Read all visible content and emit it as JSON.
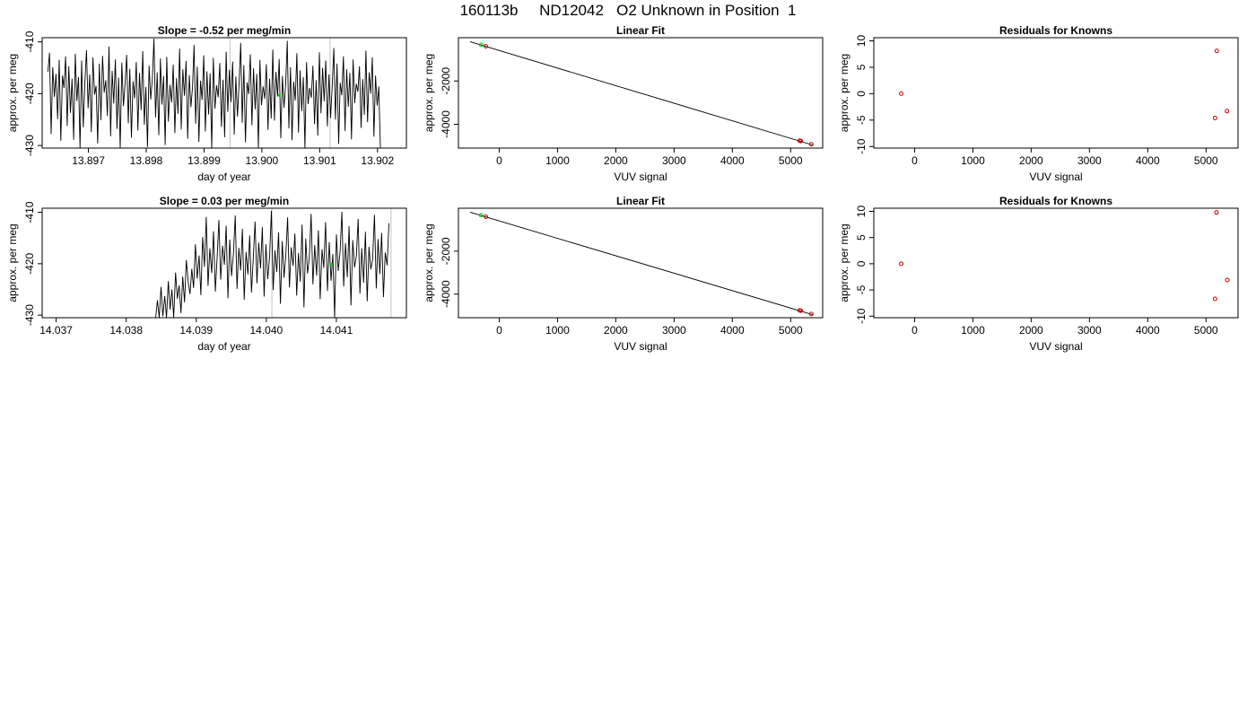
{
  "page_title": "160113b     ND12042   O2 Unknown in Position  1",
  "colors": {
    "axis": "#000000",
    "line": "#000000",
    "grid_line": "#cccccc",
    "known_point": "#cc0000",
    "unknown_point": "#00cc00"
  },
  "chart_data": [
    {
      "type": "line",
      "title": "Slope =  -0.52  per meg/min",
      "xlabel": "day of year",
      "ylabel": "approx. per meg",
      "xlim": [
        13.8962,
        13.9025
      ],
      "ylim": [
        -430.5,
        -409.2
      ],
      "xticks": [
        "13.897",
        "13.898",
        "13.899",
        "13.900",
        "13.901",
        "13.902"
      ],
      "xtick_values": [
        13.897,
        13.898,
        13.899,
        13.9,
        13.901,
        13.902
      ],
      "yticks": [
        "-410",
        "-420",
        "-430"
      ],
      "ytick_values": [
        -410,
        -420,
        -430
      ],
      "trace_start": 13.8963,
      "trace_end": 13.90205,
      "trace_values": [
        -415.8,
        -412.1,
        -427.8,
        -414.9,
        -420.6,
        -416.2,
        -424.9,
        -413.5,
        -429.1,
        -416.5,
        -418.9,
        -412.8,
        -426.2,
        -414.7,
        -423.7,
        -417.1,
        -428.9,
        -412.3,
        -421.4,
        -416.8,
        -431.2,
        -413.6,
        -426.5,
        -417.9,
        -411.6,
        -422.8,
        -416.3,
        -427.4,
        -413.0,
        -420.2,
        -418.5,
        -429.6,
        -414.2,
        -425.1,
        -412.7,
        -419.8,
        -417.4,
        -424.3,
        -410.9,
        -428.2,
        -415.6,
        -421.9,
        -413.4,
        -426.8,
        -416.9,
        -431.5,
        -414.0,
        -422.4,
        -418.1,
        -412.5,
        -425.7,
        -415.2,
        -428.5,
        -417.6,
        -420.9,
        -413.9,
        -427.1,
        -416.0,
        -423.2,
        -411.8,
        -426.0,
        -418.7,
        -430.3,
        -414.6,
        -421.1,
        -417.2,
        -409.4,
        -424.6,
        -415.9,
        -428.0,
        -413.2,
        -422.1,
        -416.6,
        -429.9,
        -412.9,
        -425.4,
        -418.3,
        -421.7,
        -414.4,
        -427.6,
        -417.0,
        -423.9,
        -411.3,
        -426.9,
        -415.3,
        -420.4,
        -413.7,
        -428.7,
        -416.4,
        -422.6,
        -418.8,
        -410.6,
        -425.8,
        -414.8,
        -429.3,
        -417.5,
        -421.2,
        -412.6,
        -427.3,
        -415.7,
        -424.0,
        -416.1,
        -431.0,
        -413.1,
        -422.9,
        -418.4,
        -420.7,
        -414.1,
        -426.4,
        -417.3,
        -428.4,
        -411.9,
        -423.5,
        -415.4,
        -421.6,
        -413.8,
        -427.9,
        -416.7,
        -424.4,
        -418.0,
        -410.2,
        -425.6,
        -414.5,
        -429.4,
        -417.8,
        -420.1,
        -412.4,
        -426.1,
        -415.1,
        -423.0,
        -416.2,
        -430.6,
        -413.5,
        -422.2,
        -418.6,
        -421.0,
        -414.3,
        -427.0,
        -417.1,
        -424.8,
        -411.5,
        -425.2,
        -415.8,
        -420.5,
        -413.3,
        -428.6,
        -416.6,
        -422.7,
        -418.2,
        -409.8,
        -426.7,
        -414.9,
        -429.0,
        -417.7,
        -421.3,
        -412.2,
        -427.5,
        -415.5,
        -423.4,
        -416.8,
        -431.4,
        -413.9,
        -422.0,
        -418.9,
        -420.8,
        -414.6,
        -425.9,
        -417.4,
        -428.1,
        -412.0,
        -423.8,
        -415.0,
        -421.5,
        -413.6,
        -426.3,
        -416.3,
        -424.7,
        -418.5,
        -411.2,
        -425.0,
        -414.2,
        -429.7,
        -417.9,
        -420.3,
        -412.8,
        -427.2,
        -415.3,
        -422.5,
        -416.0,
        -428.8,
        -413.4,
        -421.8,
        -418.1,
        -419.6,
        -414.7,
        -426.6,
        -417.2,
        -424.1,
        -411.7,
        -425.5,
        -415.9,
        -420.0,
        -413.0,
        -428.3,
        -416.5,
        -422.3,
        -418.6,
        -430.9
      ],
      "green_x": 13.9003,
      "green_y": -420.3,
      "vlines": [
        13.89945,
        13.90118
      ]
    },
    {
      "type": "scatter",
      "title": "Linear Fit",
      "xlabel": "VUV signal",
      "ylabel": "approx. per meg",
      "xlim": [
        -700,
        5550
      ],
      "ylim": [
        -5100,
        0
      ],
      "xticks": [
        "0",
        "1000",
        "2000",
        "3000",
        "4000",
        "5000"
      ],
      "xtick_values": [
        0,
        1000,
        2000,
        3000,
        4000,
        5000
      ],
      "yticks": [
        "-2000",
        "-4000"
      ],
      "ytick_values": [
        -2000,
        -4000
      ],
      "fit_line": [
        [
          -500,
          -185
        ],
        [
          5380,
          -4960
        ]
      ],
      "known_points": [
        [
          -230,
          -395
        ],
        [
          5155,
          -4760
        ],
        [
          5175,
          -4775
        ],
        [
          5355,
          -4925
        ]
      ],
      "unknown_points": [
        [
          -310,
          -330
        ]
      ]
    },
    {
      "type": "scatter",
      "title": "Residuals for Knowns",
      "xlabel": "VUV signal",
      "ylabel": "approx. per meg",
      "xlim": [
        -700,
        5550
      ],
      "ylim": [
        -10.3,
        10.6
      ],
      "xticks": [
        "0",
        "1000",
        "2000",
        "3000",
        "4000",
        "5000"
      ],
      "xtick_values": [
        0,
        1000,
        2000,
        3000,
        4000,
        5000
      ],
      "yticks": [
        "10",
        "5",
        "0",
        "-5",
        "-10"
      ],
      "ytick_values": [
        10,
        5,
        0,
        -5,
        -10
      ],
      "known_points": [
        [
          -230,
          0.0
        ],
        [
          5185,
          8.1
        ],
        [
          5155,
          -4.6
        ],
        [
          5360,
          -3.3
        ]
      ]
    },
    {
      "type": "line",
      "title": "Slope =  0.03  per meg/min",
      "xlabel": "day of year",
      "ylabel": "approx. per meg",
      "xlim": [
        14.0368,
        14.042
      ],
      "ylim": [
        -430.5,
        -409.2
      ],
      "xticks": [
        "14.037",
        "14.038",
        "14.039",
        "14.040",
        "14.041"
      ],
      "xtick_values": [
        14.037,
        14.038,
        14.039,
        14.04,
        14.041
      ],
      "yticks": [
        "-410",
        "-420",
        "-430"
      ],
      "ytick_values": [
        -410,
        -420,
        -430
      ],
      "trace_start": 14.03842,
      "trace_end": 14.04175,
      "trace_values": [
        -433.0,
        -427.1,
        -431.8,
        -424.5,
        -430.2,
        -426.3,
        -433.5,
        -423.4,
        -428.9,
        -425.0,
        -432.1,
        -421.7,
        -426.8,
        -424.2,
        -429.6,
        -422.5,
        -427.5,
        -419.3,
        -423.6,
        -425.9,
        -421.0,
        -424.7,
        -416.2,
        -422.9,
        -418.4,
        -426.1,
        -414.8,
        -420.6,
        -410.9,
        -424.3,
        -417.0,
        -421.8,
        -413.7,
        -425.4,
        -418.9,
        -411.5,
        -423.1,
        -416.5,
        -420.2,
        -412.6,
        -426.7,
        -415.3,
        -422.4,
        -418.0,
        -410.6,
        -424.9,
        -416.9,
        -421.3,
        -413.2,
        -427.0,
        -417.7,
        -422.1,
        -414.5,
        -425.6,
        -419.0,
        -411.8,
        -423.8,
        -415.9,
        -420.9,
        -412.9,
        -426.4,
        -416.2,
        -423.0,
        -418.6,
        -409.7,
        -425.1,
        -417.4,
        -421.6,
        -413.9,
        -427.8,
        -415.6,
        -422.7,
        -418.3,
        -411.0,
        -424.6,
        -416.8,
        -420.4,
        -414.1,
        -426.2,
        -417.9,
        -423.5,
        -412.4,
        -428.5,
        -415.1,
        -421.9,
        -418.8,
        -410.3,
        -424.0,
        -416.4,
        -422.3,
        -413.5,
        -426.9,
        -417.2,
        -420.8,
        -411.9,
        -425.3,
        -415.8,
        -423.3,
        -418.1,
        -432.4,
        -414.3,
        -421.4,
        -417.6,
        -409.9,
        -424.4,
        -416.0,
        -422.6,
        -412.7,
        -428.1,
        -415.4,
        -420.7,
        -418.5,
        -411.3,
        -425.8,
        -417.0,
        -423.7,
        -413.8,
        -427.3,
        -416.7,
        -421.1,
        -419.2,
        -410.5,
        -424.8,
        -415.2,
        -422.0,
        -414.0,
        -426.5,
        -417.8,
        -420.3,
        -412.1
      ],
      "green_x": 14.04093,
      "green_y": -420.1,
      "vlines": [
        14.04008,
        14.04178
      ]
    },
    {
      "type": "scatter",
      "title": "Linear Fit",
      "xlabel": "VUV signal",
      "ylabel": "approx. per meg",
      "xlim": [
        -700,
        5550
      ],
      "ylim": [
        -5100,
        0
      ],
      "xticks": [
        "0",
        "1000",
        "2000",
        "3000",
        "4000",
        "5000"
      ],
      "xtick_values": [
        0,
        1000,
        2000,
        3000,
        4000,
        5000
      ],
      "yticks": [
        "-2000",
        "-4000"
      ],
      "ytick_values": [
        -2000,
        -4000
      ],
      "fit_line": [
        [
          -500,
          -185
        ],
        [
          5380,
          -4960
        ]
      ],
      "known_points": [
        [
          -230,
          -395
        ],
        [
          5155,
          -4760
        ],
        [
          5175,
          -4775
        ],
        [
          5355,
          -4925
        ]
      ],
      "unknown_points": [
        [
          -310,
          -330
        ]
      ]
    },
    {
      "type": "scatter",
      "title": "Residuals for Knowns",
      "xlabel": "VUV signal",
      "ylabel": "approx. per meg",
      "xlim": [
        -700,
        5550
      ],
      "ylim": [
        -10.3,
        10.6
      ],
      "xticks": [
        "0",
        "1000",
        "2000",
        "3000",
        "4000",
        "5000"
      ],
      "xtick_values": [
        0,
        1000,
        2000,
        3000,
        4000,
        5000
      ],
      "yticks": [
        "10",
        "5",
        "0",
        "-5",
        "-10"
      ],
      "ytick_values": [
        10,
        5,
        0,
        -5,
        -10
      ],
      "known_points": [
        [
          -230,
          0.0
        ],
        [
          5180,
          9.8
        ],
        [
          5155,
          -6.7
        ],
        [
          5365,
          -3.1
        ]
      ]
    }
  ]
}
